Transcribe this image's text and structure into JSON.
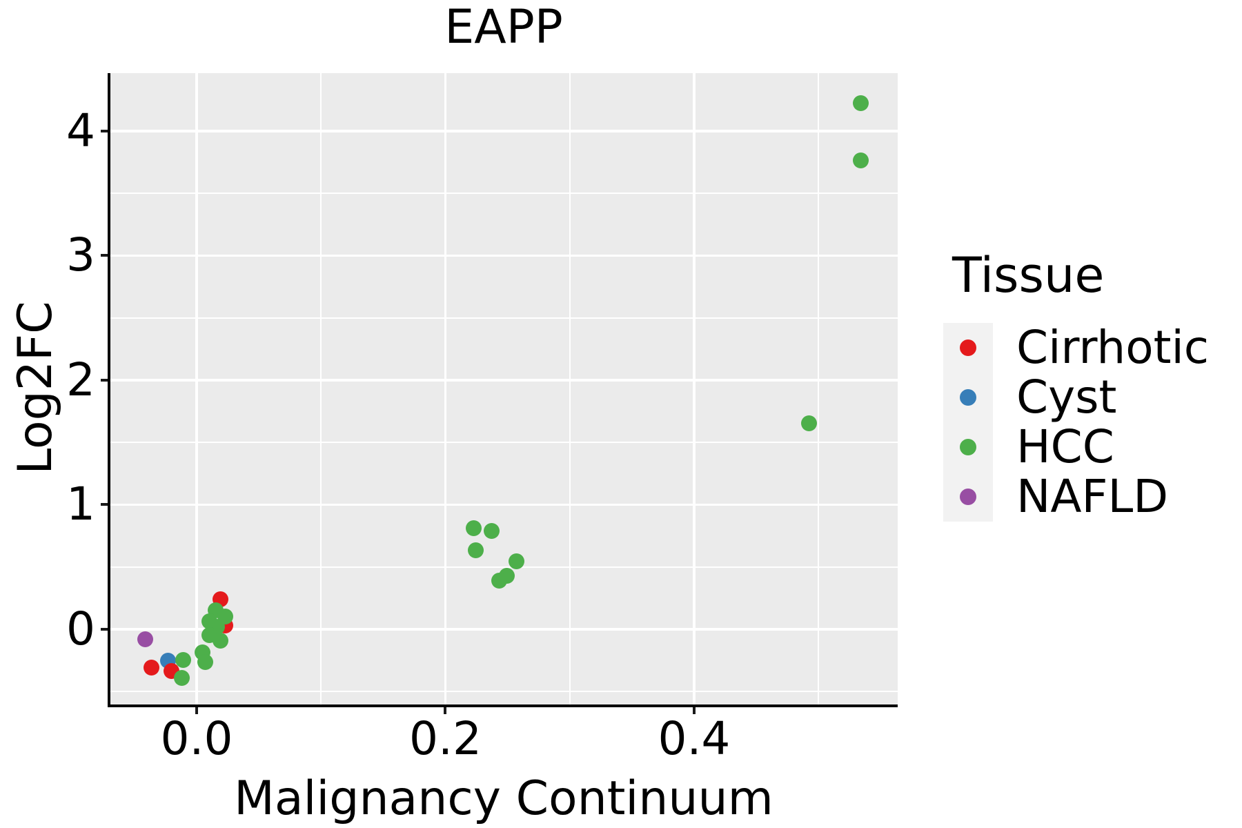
{
  "chart_data": {
    "type": "scatter",
    "title": "EAPP",
    "xlabel": "Malignancy Continuum",
    "ylabel": "Log2FC",
    "legend_title": "Tissue",
    "legend_position": "right",
    "grid": true,
    "panel_background": "#EBEBEB",
    "gridline_color": "#FFFFFF",
    "xlim": [
      -0.0699,
      0.5637
    ],
    "ylim": [
      -0.604,
      4.465
    ],
    "x_ticks": [
      {
        "value": 0.0,
        "label": "0.0"
      },
      {
        "value": 0.2,
        "label": "0.2"
      },
      {
        "value": 0.4,
        "label": "0.4"
      }
    ],
    "x_minor_ticks": [
      0.1,
      0.3,
      0.5
    ],
    "y_ticks": [
      {
        "value": 0,
        "label": "0"
      },
      {
        "value": 1,
        "label": "1"
      },
      {
        "value": 2,
        "label": "2"
      },
      {
        "value": 3,
        "label": "3"
      },
      {
        "value": 4,
        "label": "4"
      }
    ],
    "y_minor_ticks": [
      -0.5,
      0.5,
      1.5,
      2.5,
      3.5
    ],
    "series": [
      {
        "name": "Cirrhotic",
        "color": "#E41A1C",
        "draw_order": 2,
        "points": [
          [
            -0.0361,
            -0.309
          ],
          [
            -0.02,
            -0.336
          ],
          [
            0.0189,
            0.242
          ],
          [
            0.0228,
            0.033
          ]
        ]
      },
      {
        "name": "Cyst",
        "color": "#377EB8",
        "draw_order": 1,
        "points": [
          [
            -0.0228,
            -0.253
          ]
        ]
      },
      {
        "name": "HCC",
        "color": "#4DAF4A",
        "draw_order": 3,
        "points": [
          [
            -0.012,
            -0.388
          ],
          [
            -0.0107,
            -0.249
          ],
          [
            0.005,
            -0.183
          ],
          [
            0.0067,
            -0.266
          ],
          [
            0.0155,
            0.15
          ],
          [
            0.0233,
            0.1
          ],
          [
            0.0105,
            0.066
          ],
          [
            0.0166,
            0.022
          ],
          [
            0.0105,
            -0.05
          ],
          [
            0.0189,
            -0.089
          ],
          [
            0.2229,
            0.81
          ],
          [
            0.2371,
            0.787
          ],
          [
            0.2243,
            0.633
          ],
          [
            0.2571,
            0.543
          ],
          [
            0.2493,
            0.427
          ],
          [
            0.2432,
            0.39
          ],
          [
            0.4926,
            1.653
          ],
          [
            0.5339,
            4.224
          ],
          [
            0.5339,
            3.762
          ]
        ]
      },
      {
        "name": "NAFLD",
        "color": "#984EA3",
        "draw_order": 4,
        "points": [
          [
            -0.0411,
            -0.078
          ]
        ]
      }
    ]
  }
}
